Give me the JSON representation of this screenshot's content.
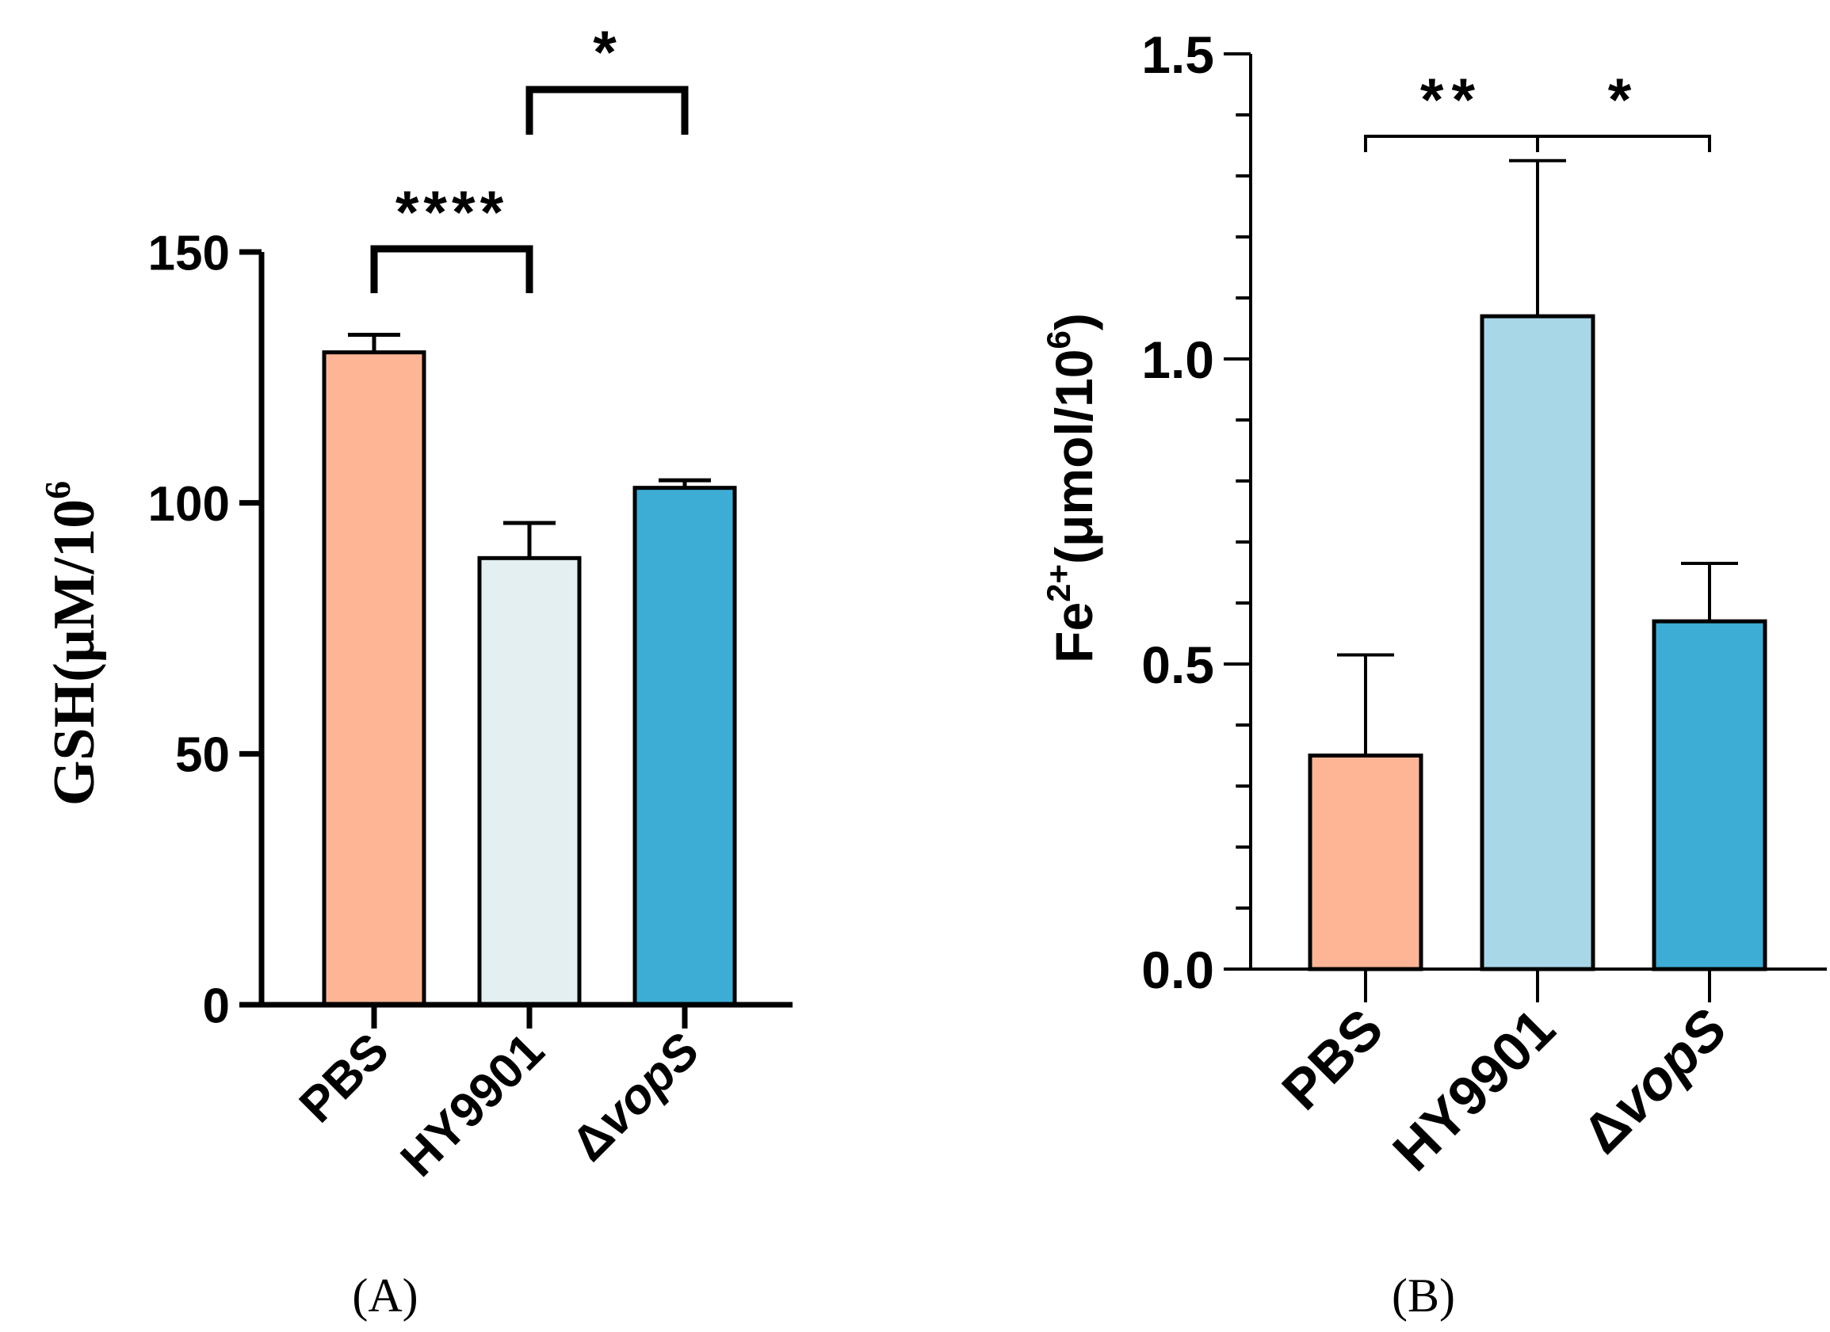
{
  "chart_data": [
    {
      "panel": "(A)",
      "type": "bar",
      "categories": [
        "PBS",
        "HY9901",
        "ΔvopS"
      ],
      "category_parts": [
        [
          "PBS",
          ""
        ],
        [
          "HY9901",
          ""
        ],
        [
          "Δ",
          "vopS"
        ]
      ],
      "values": [
        130,
        89,
        103
      ],
      "errors": [
        3.5,
        7,
        1.5
      ],
      "colors": [
        "#FDB595",
        "#E3EFF1",
        "#3DADD5"
      ],
      "ylabel": "GSH(μM/10",
      "ylabel_sup": "6",
      "ylim": [
        0,
        150
      ],
      "yticks": [
        0,
        50,
        100,
        150
      ],
      "ytick_labels": [
        "0",
        "50",
        "100",
        "150"
      ],
      "significance": [
        {
          "from": 0,
          "to": 1,
          "label": "****"
        },
        {
          "from": 1,
          "to": 2,
          "label": "*"
        }
      ]
    },
    {
      "panel": "(B)",
      "type": "bar",
      "categories": [
        "PBS",
        "HY9901",
        "ΔvopS"
      ],
      "category_parts": [
        [
          "PBS",
          ""
        ],
        [
          "HY9901",
          ""
        ],
        [
          "Δ",
          "vopS"
        ]
      ],
      "values": [
        0.35,
        1.07,
        0.57
      ],
      "errors": [
        0.165,
        0.255,
        0.095
      ],
      "colors": [
        "#FDB595",
        "#A8D7E8",
        "#3DADD5"
      ],
      "ylabel_prefix": "Fe",
      "ylabel_sup1": "2+",
      "ylabel_mid": "(μmol/10",
      "ylabel_sup2": "6",
      "ylabel_suffix": ")",
      "ylim": [
        0,
        1.5
      ],
      "yticks": [
        0,
        0.5,
        1.0,
        1.5
      ],
      "ytick_labels": [
        "0.0",
        "0.5",
        "1.0",
        "1.5"
      ],
      "minor_ticks_per_major": 5,
      "significance": [
        {
          "from": 0,
          "to": 1,
          "label": "**"
        },
        {
          "from": 1,
          "to": 2,
          "label": "*"
        }
      ]
    }
  ]
}
